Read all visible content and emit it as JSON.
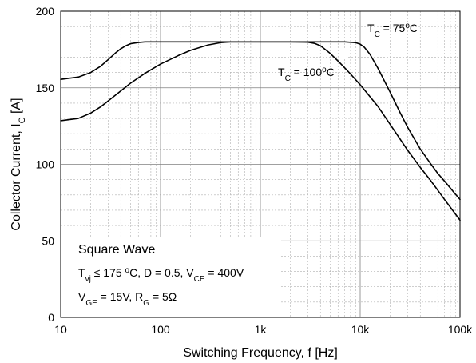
{
  "chart_data": {
    "type": "line",
    "xlabel": "Switching Frequency, f [Hz]",
    "ylabel": "Collector Current, I_C [A]",
    "xscale": "log",
    "xlim": [
      10,
      100000
    ],
    "ylim": [
      0,
      200
    ],
    "xticks": [
      10,
      100,
      1000,
      10000,
      100000
    ],
    "xtick_labels": [
      "10",
      "100",
      "1k",
      "10k",
      "100k"
    ],
    "yticks": [
      0,
      50,
      100,
      150,
      200
    ],
    "ytick_labels": [
      "0",
      "50",
      "100",
      "150",
      "200"
    ],
    "grid": true,
    "series": [
      {
        "name": "T_C = 75°C",
        "color": "#000000",
        "points": [
          [
            10,
            155.5
          ],
          [
            15,
            157
          ],
          [
            20,
            160
          ],
          [
            25,
            164
          ],
          [
            30,
            168.5
          ],
          [
            35,
            172.5
          ],
          [
            40,
            175.5
          ],
          [
            45,
            177.5
          ],
          [
            50,
            178.8
          ],
          [
            60,
            179.6
          ],
          [
            70,
            180
          ],
          [
            100,
            180
          ],
          [
            300,
            180
          ],
          [
            1000,
            180
          ],
          [
            3000,
            180
          ],
          [
            7000,
            180
          ],
          [
            9000,
            179.5
          ],
          [
            10000,
            178.5
          ],
          [
            11000,
            176.5
          ],
          [
            12500,
            172
          ],
          [
            15000,
            163
          ],
          [
            20000,
            147
          ],
          [
            25000,
            134
          ],
          [
            30000,
            124
          ],
          [
            40000,
            110
          ],
          [
            50000,
            101
          ],
          [
            60000,
            94
          ],
          [
            70000,
            89
          ],
          [
            80000,
            84.5
          ],
          [
            90000,
            80.5
          ],
          [
            100000,
            77
          ]
        ]
      },
      {
        "name": "T_C = 100°C",
        "color": "#000000",
        "points": [
          [
            10,
            128.5
          ],
          [
            15,
            130
          ],
          [
            20,
            133.5
          ],
          [
            25,
            137.5
          ],
          [
            30,
            141.5
          ],
          [
            40,
            148
          ],
          [
            50,
            153
          ],
          [
            70,
            159.5
          ],
          [
            100,
            165.5
          ],
          [
            150,
            171
          ],
          [
            200,
            174.5
          ],
          [
            300,
            178
          ],
          [
            400,
            179.5
          ],
          [
            500,
            180
          ],
          [
            1000,
            180
          ],
          [
            2000,
            180
          ],
          [
            3000,
            179.8
          ],
          [
            3500,
            179
          ],
          [
            4000,
            177.5
          ],
          [
            5000,
            172.5
          ],
          [
            6000,
            167.5
          ],
          [
            7000,
            163
          ],
          [
            8000,
            159
          ],
          [
            10000,
            152
          ],
          [
            15000,
            138
          ],
          [
            20000,
            126
          ],
          [
            30000,
            109
          ],
          [
            40000,
            98
          ],
          [
            50000,
            90
          ],
          [
            60000,
            83
          ],
          [
            70000,
            77
          ],
          [
            80000,
            72
          ],
          [
            90000,
            67.5
          ],
          [
            100000,
            63.5
          ]
        ]
      }
    ],
    "annotations": {
      "label_75": {
        "base": "T",
        "sub": "C",
        "rest": " = 75",
        "sup": "o",
        "unit": "C"
      },
      "label_100": {
        "base": "T",
        "sub": "C",
        "rest": " = 100",
        "sup": "o",
        "unit": "C"
      },
      "conditions_line1": "Square Wave",
      "conditions_line2": {
        "p1": "T",
        "s1": "vj",
        "p2": " ≤ 175 ",
        "sup": "o",
        "p3": "C, D = 0.5, V",
        "s2": "CE",
        "p4": " = 400V"
      },
      "conditions_line3": {
        "p1": "V",
        "s1": "GE",
        "p2": " = 15V, R",
        "s2": "G",
        "p3": " = 5Ω"
      }
    }
  }
}
